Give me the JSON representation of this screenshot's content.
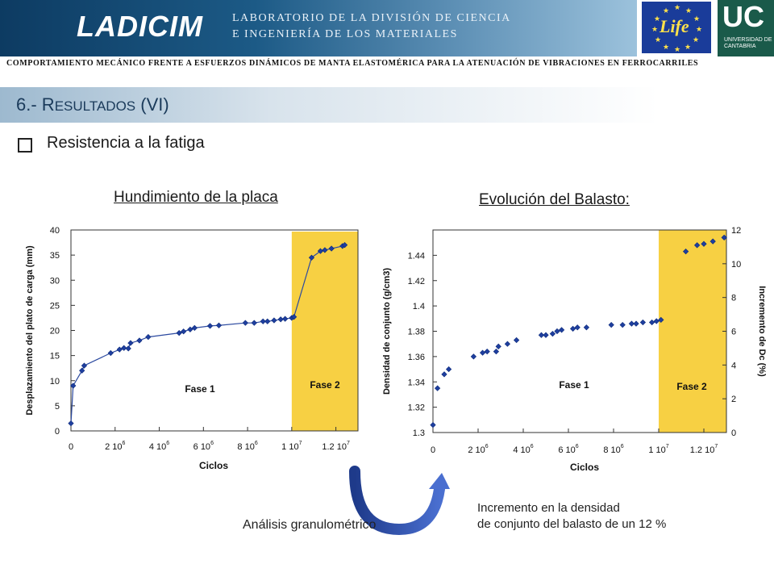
{
  "header": {
    "logo_text": "LADICIM",
    "lab_line1": "LABORATORIO DE LA DIVISIÓN DE CIENCIA",
    "lab_line2": "E INGENIERÍA DE LOS MATERIALES",
    "eu_logo_text": "Life",
    "uc_logo_text": "UC",
    "uc_logo_sub": "UNIVERSIDAD DE CANTABRIA"
  },
  "subtitle": "COMPORTAMIENTO MECÁNICO FRENTE A ESFUERZOS DINÁMICOS DE MANTA ELASTOMÉRICA PARA LA ATENUACIÓN DE VIBRACIONES EN FERROCARRILES",
  "section_title": "6.- R",
  "section_title_rest": "ESULTADOS",
  "section_title_suffix": " (VI)",
  "bullet_label": "Resistencia a la fatiga",
  "colors": {
    "fase2": "#f7d043",
    "marker": "#1f3f9f",
    "line": "#2c4aa0"
  },
  "notes": {
    "left": "Análisis granulométrico",
    "right_line1": "Incremento en la densidad",
    "right_line2": "de conjunto del balasto de un 12 %"
  },
  "chart_data": [
    {
      "type": "line",
      "title": "Hundimiento de la placa",
      "xlabel": "Ciclos",
      "ylabel": "Desplazamiento del plato de carga (mm)",
      "xlim": [
        0,
        13000000
      ],
      "ylim": [
        0,
        40
      ],
      "xticks": [
        {
          "v": 0,
          "m": "0",
          "e": ""
        },
        {
          "v": 2000000,
          "m": "2 10",
          "e": "6"
        },
        {
          "v": 4000000,
          "m": "4 10",
          "e": "6"
        },
        {
          "v": 6000000,
          "m": "6 10",
          "e": "6"
        },
        {
          "v": 8000000,
          "m": "8 10",
          "e": "6"
        },
        {
          "v": 10000000,
          "m": "1 10",
          "e": "7"
        },
        {
          "v": 12000000,
          "m": "1.2 10",
          "e": "7"
        }
      ],
      "yticks": [
        "0",
        "5",
        "10",
        "15",
        "20",
        "25",
        "30",
        "35",
        "40"
      ],
      "phase2_start": 10000000,
      "annotations": [
        "Fase 1",
        "Fase 2"
      ],
      "points": [
        [
          0,
          1.5
        ],
        [
          100000,
          9
        ],
        [
          500000,
          12
        ],
        [
          600000,
          13
        ],
        [
          1800000,
          15.5
        ],
        [
          2200000,
          16.2
        ],
        [
          2400000,
          16.5
        ],
        [
          2600000,
          16.4
        ],
        [
          2700000,
          17.5
        ],
        [
          3100000,
          18
        ],
        [
          3500000,
          18.7
        ],
        [
          4900000,
          19.5
        ],
        [
          5100000,
          19.8
        ],
        [
          5400000,
          20.2
        ],
        [
          5600000,
          20.5
        ],
        [
          6300000,
          20.9
        ],
        [
          6700000,
          21
        ],
        [
          7900000,
          21.5
        ],
        [
          8300000,
          21.5
        ],
        [
          8700000,
          21.8
        ],
        [
          8900000,
          21.8
        ],
        [
          9200000,
          22
        ],
        [
          9500000,
          22.2
        ],
        [
          9700000,
          22.3
        ],
        [
          10000000,
          22.5
        ],
        [
          10100000,
          22.7
        ],
        [
          10900000,
          34.5
        ],
        [
          11300000,
          35.8
        ],
        [
          11500000,
          36
        ],
        [
          11800000,
          36.3
        ],
        [
          12300000,
          36.8
        ],
        [
          12400000,
          37
        ]
      ]
    },
    {
      "type": "scatter",
      "title": "Evolución del Balasto:",
      "xlabel": "Ciclos",
      "ylabel": "Densidad de conjunto (g/cm3)",
      "y2label": "Incremento de Dc (%)",
      "xlim": [
        0,
        13000000
      ],
      "ylim": [
        1.3,
        1.46
      ],
      "y2lim": [
        0,
        12
      ],
      "xticks": [
        {
          "v": 0,
          "m": "0",
          "e": ""
        },
        {
          "v": 2000000,
          "m": "2 10",
          "e": "6"
        },
        {
          "v": 4000000,
          "m": "4 10",
          "e": "6"
        },
        {
          "v": 6000000,
          "m": "6 10",
          "e": "6"
        },
        {
          "v": 8000000,
          "m": "8 10",
          "e": "6"
        },
        {
          "v": 10000000,
          "m": "1 10",
          "e": "7"
        },
        {
          "v": 12000000,
          "m": "1.2 10",
          "e": "7"
        }
      ],
      "yticks": [
        1.3,
        1.32,
        1.34,
        1.36,
        1.38,
        1.4,
        1.42,
        1.44
      ],
      "y2ticks": [
        0,
        2,
        4,
        6,
        8,
        10,
        12
      ],
      "phase2_start": 10000000,
      "annotations": [
        "Fase 1",
        "Fase 2"
      ],
      "points": [
        [
          0,
          1.306
        ],
        [
          200000,
          1.335
        ],
        [
          500000,
          1.346
        ],
        [
          700000,
          1.35
        ],
        [
          1800000,
          1.36
        ],
        [
          2200000,
          1.363
        ],
        [
          2400000,
          1.364
        ],
        [
          2800000,
          1.364
        ],
        [
          2900000,
          1.368
        ],
        [
          3300000,
          1.37
        ],
        [
          3700000,
          1.373
        ],
        [
          4800000,
          1.377
        ],
        [
          5000000,
          1.377
        ],
        [
          5300000,
          1.378
        ],
        [
          5500000,
          1.38
        ],
        [
          5700000,
          1.381
        ],
        [
          6200000,
          1.382
        ],
        [
          6400000,
          1.383
        ],
        [
          6800000,
          1.383
        ],
        [
          7900000,
          1.385
        ],
        [
          8400000,
          1.385
        ],
        [
          8800000,
          1.386
        ],
        [
          9000000,
          1.386
        ],
        [
          9300000,
          1.387
        ],
        [
          9700000,
          1.387
        ],
        [
          9900000,
          1.388
        ],
        [
          10100000,
          1.389
        ],
        [
          11200000,
          1.443
        ],
        [
          11700000,
          1.448
        ],
        [
          12000000,
          1.449
        ],
        [
          12400000,
          1.451
        ],
        [
          12900000,
          1.454
        ]
      ]
    }
  ]
}
